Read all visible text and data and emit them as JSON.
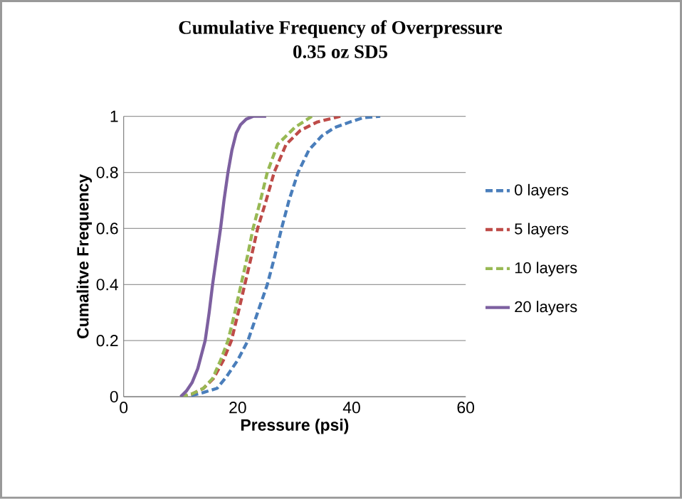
{
  "chart_data": {
    "type": "line",
    "title": "Cumulative Frequency of Overpressure",
    "subtitle": "0.35 oz SD5",
    "xlabel": "Pressure (psi)",
    "ylabel": "Cumalitve Frequency",
    "xlim": [
      0,
      60
    ],
    "xticks": [
      0,
      20,
      40,
      60
    ],
    "ylim": [
      0,
      1
    ],
    "yticks": [
      0,
      0.2,
      0.4,
      0.6,
      0.8,
      1
    ],
    "grid": "y",
    "legend": "right",
    "marker": "none",
    "series": [
      {
        "name": "0 layers",
        "color": "#4a7ebb",
        "line_style": "dashed",
        "x": [
          10,
          12,
          14,
          16.4,
          18,
          20,
          21.8,
          23.5,
          25.2,
          26.5,
          27.7,
          29,
          30.6,
          32.5,
          34.75,
          37,
          39.75,
          42,
          45
        ],
        "values": [
          0,
          0.005,
          0.015,
          0.03,
          0.07,
          0.13,
          0.2,
          0.3,
          0.4,
          0.5,
          0.6,
          0.7,
          0.8,
          0.88,
          0.93,
          0.96,
          0.98,
          0.995,
          1
        ]
      },
      {
        "name": "5 layers",
        "color": "#be4b48",
        "line_style": "dashed",
        "x": [
          10,
          12,
          14,
          15.75,
          17.5,
          18.9,
          20.1,
          21.25,
          22.4,
          23.5,
          25,
          26.4,
          28.5,
          31,
          34,
          38
        ],
        "values": [
          0,
          0.01,
          0.03,
          0.065,
          0.13,
          0.2,
          0.3,
          0.4,
          0.5,
          0.6,
          0.7,
          0.8,
          0.9,
          0.95,
          0.98,
          1
        ]
      },
      {
        "name": "10 layers",
        "color": "#98b954",
        "line_style": "dashed",
        "x": [
          10,
          12,
          14,
          15.6,
          17,
          18.3,
          19.5,
          20.6,
          21.7,
          22.7,
          24,
          25.2,
          27,
          30,
          33
        ],
        "values": [
          0,
          0.01,
          0.03,
          0.065,
          0.13,
          0.2,
          0.3,
          0.4,
          0.5,
          0.6,
          0.7,
          0.8,
          0.9,
          0.96,
          1
        ]
      },
      {
        "name": "20 layers",
        "color": "#7d60a0",
        "line_style": "solid",
        "x": [
          10,
          11,
          12,
          13,
          14.3,
          15,
          15.6,
          16.3,
          17,
          17.6,
          18.3,
          19,
          19.75,
          20.5,
          21.5,
          22.7,
          25
        ],
        "values": [
          0,
          0.02,
          0.05,
          0.1,
          0.2,
          0.3,
          0.4,
          0.5,
          0.6,
          0.7,
          0.8,
          0.88,
          0.94,
          0.97,
          0.99,
          1,
          1
        ]
      }
    ]
  }
}
